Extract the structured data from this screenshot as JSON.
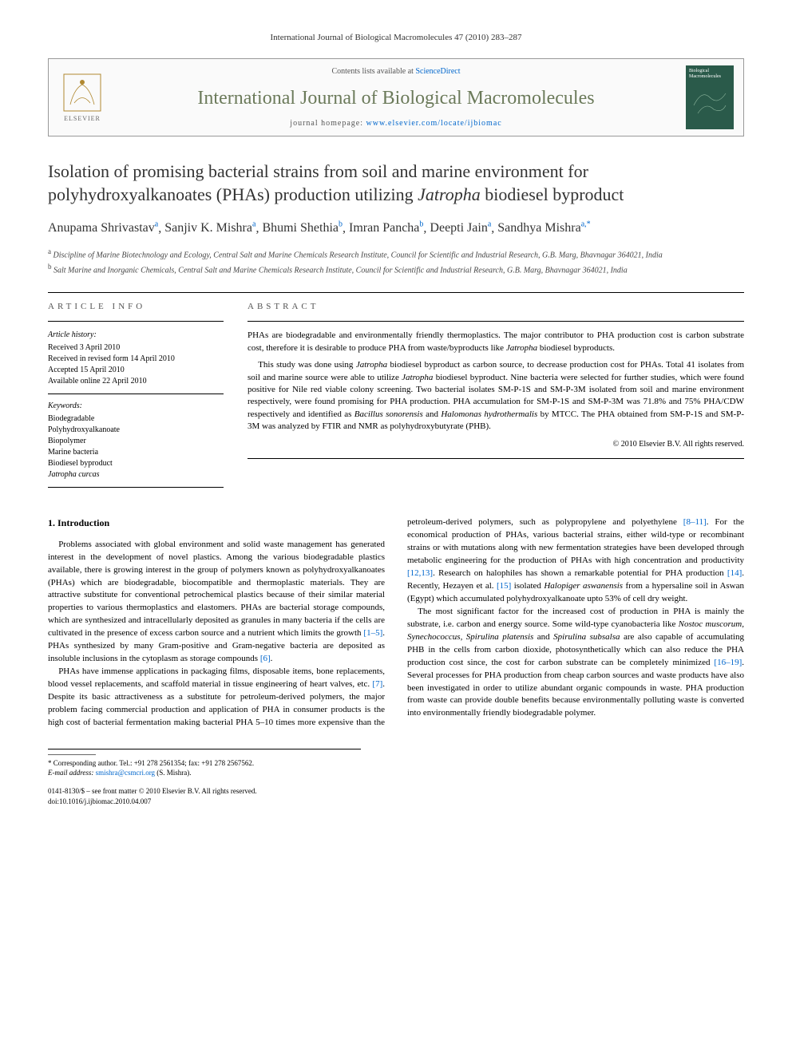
{
  "running_head": "International Journal of Biological Macromolecules 47 (2010) 283–287",
  "header": {
    "contents_prefix": "Contents lists available at ",
    "contents_link": "ScienceDirect",
    "journal_name": "International Journal of Biological Macromolecules",
    "homepage_prefix": "journal homepage: ",
    "homepage_link": "www.elsevier.com/locate/ijbiomac",
    "elsevier_label": "ELSEVIER",
    "cover_label": "Biological Macromolecules"
  },
  "title_part1": "Isolation of promising bacterial strains from soil and marine environment for polyhydroxyalkanoates (PHAs) production utilizing ",
  "title_italic": "Jatropha",
  "title_part2": " biodiesel byproduct",
  "authors_html": "Anupama Shrivastav",
  "authors": [
    {
      "name": "Anupama Shrivastav",
      "sup": "a"
    },
    {
      "name": "Sanjiv K. Mishra",
      "sup": "a"
    },
    {
      "name": "Bhumi Shethia",
      "sup": "b"
    },
    {
      "name": "Imran Pancha",
      "sup": "b"
    },
    {
      "name": "Deepti Jain",
      "sup": "a"
    },
    {
      "name": "Sandhya Mishra",
      "sup": "a,*"
    }
  ],
  "affiliations": [
    {
      "sup": "a",
      "text": "Discipline of Marine Biotechnology and Ecology, Central Salt and Marine Chemicals Research Institute, Council for Scientific and Industrial Research, G.B. Marg, Bhavnagar 364021, India"
    },
    {
      "sup": "b",
      "text": "Salt Marine and Inorganic Chemicals, Central Salt and Marine Chemicals Research Institute, Council for Scientific and Industrial Research, G.B. Marg, Bhavnagar 364021, India"
    }
  ],
  "info": {
    "heading": "ARTICLE INFO",
    "history_label": "Article history:",
    "history": [
      "Received 3 April 2010",
      "Received in revised form 14 April 2010",
      "Accepted 15 April 2010",
      "Available online 22 April 2010"
    ],
    "keywords_label": "Keywords:",
    "keywords": [
      "Biodegradable",
      "Polyhydroxyalkanoate",
      "Biopolymer",
      "Marine bacteria",
      "Biodiesel byproduct"
    ],
    "keywords_italic": "Jatropha curcas"
  },
  "abstract": {
    "heading": "ABSTRACT",
    "p1_a": "PHAs are biodegradable and environmentally friendly thermoplastics. The major contributor to PHA production cost is carbon substrate cost, therefore it is desirable to produce PHA from waste/byproducts like ",
    "p1_i": "Jatropha",
    "p1_b": " biodiesel byproducts.",
    "p2_a": "This study was done using ",
    "p2_i1": "Jatropha",
    "p2_b": " biodiesel byproduct as carbon source, to decrease production cost for PHAs. Total 41 isolates from soil and marine source were able to utilize ",
    "p2_i2": "Jatropha",
    "p2_c": " biodiesel byproduct. Nine bacteria were selected for further studies, which were found positive for Nile red viable colony screening. Two bacterial isolates SM-P-1S and SM-P-3M isolated from soil and marine environment respectively, were found promising for PHA production. PHA accumulation for SM-P-1S and SM-P-3M was 71.8% and 75% PHA/CDW respectively and identified as ",
    "p2_i3": "Bacillus sonorensis",
    "p2_d": " and ",
    "p2_i4": "Halomonas hydrothermalis",
    "p2_e": " by MTCC. The PHA obtained from SM-P-1S and SM-P-3M was analyzed by FTIR and NMR as polyhydroxybutyrate (PHB).",
    "copyright": "© 2010 Elsevier B.V. All rights reserved."
  },
  "body": {
    "section_heading": "1. Introduction",
    "p1_a": "Problems associated with global environment and solid waste management has generated interest in the development of novel plastics. Among the various biodegradable plastics available, there is growing interest in the group of polymers known as polyhydroxyalkanoates (PHAs) which are biodegradable, biocompatible and thermoplastic materials. They are attractive substitute for conventional petrochemical plastics because of their similar material properties to various thermoplastics and elastomers. PHAs are bacterial storage compounds, which are synthesized and intracellularly deposited as granules in many bacteria if the cells are cultivated in the presence of excess carbon source and a nutrient which limits the growth ",
    "p1_ref1": "[1–5]",
    "p1_b": ". PHAs synthesized by many Gram-positive and Gram-negative bacteria are deposited as insoluble inclusions in the cytoplasm as storage compounds ",
    "p1_ref2": "[6]",
    "p1_c": ".",
    "p2_a": "PHAs have immense applications in packaging films, disposable items, bone replacements, blood vessel replacements, and scaffold material in tissue engineering of heart valves, etc. ",
    "p2_ref1": "[7]",
    "p2_b": ". Despite its basic attractiveness as a substitute for petroleum-derived polymers, the major problem facing commercial production and application of PHA in consumer products is the high cost of bacterial fermentation making bacterial PHA 5–10 times more expensive than the petroleum-derived polymers, such as polypropylene and polyethylene ",
    "p2_ref2": "[8–11]",
    "p2_c": ". For the economical production of PHAs, various bacterial strains, either wild-type or recombinant strains or with mutations along with new fermentation strategies have been developed through metabolic engineering for the production of PHAs with high concentration and productivity ",
    "p2_ref3": "[12,13]",
    "p2_d": ". Research on halophiles has shown a remarkable potential for PHA production ",
    "p2_ref4": "[14]",
    "p2_e": ". Recently, Hezayen et al. ",
    "p2_ref5": "[15]",
    "p2_f": " isolated ",
    "p2_i1": "Halopiger aswanensis",
    "p2_g": " from a hypersaline soil in Aswan (Egypt) which accumulated polyhydroxyalkanoate upto 53% of cell dry weight.",
    "p3_a": "The most significant factor for the increased cost of production in PHA is mainly the substrate, i.e. carbon and energy source. Some wild-type cyanobacteria like ",
    "p3_i1": "Nostoc muscorum, Synechococcus, Spirulina platensis",
    "p3_b": " and ",
    "p3_i2": "Spirulina subsalsa",
    "p3_c": " are also capable of accumulating PHB in the cells from carbon dioxide, photosynthetically which can also reduce the PHA production cost since, the cost for carbon substrate can be completely minimized ",
    "p3_ref1": "[16–19]",
    "p3_d": ". Several processes for PHA production from cheap carbon sources and waste products have also been investigated in order to utilize abundant organic compounds in waste. PHA production from waste can provide double benefits because environmentally polluting waste is converted into environmentally friendly biodegradable polymer."
  },
  "footer": {
    "corr": "* Corresponding author. Tel.: +91 278 2561354; fax: +91 278 2567562.",
    "email_label": "E-mail address: ",
    "email": "smishra@csmcri.org",
    "email_suffix": " (S. Mishra).",
    "issn": "0141-8130/$ – see front matter © 2010 Elsevier B.V. All rights reserved.",
    "doi": "doi:10.1016/j.ijbiomac.2010.04.007"
  },
  "colors": {
    "link": "#0066cc",
    "journal_green": "#6b7a5a",
    "cover_bg": "#2a5a4a"
  }
}
